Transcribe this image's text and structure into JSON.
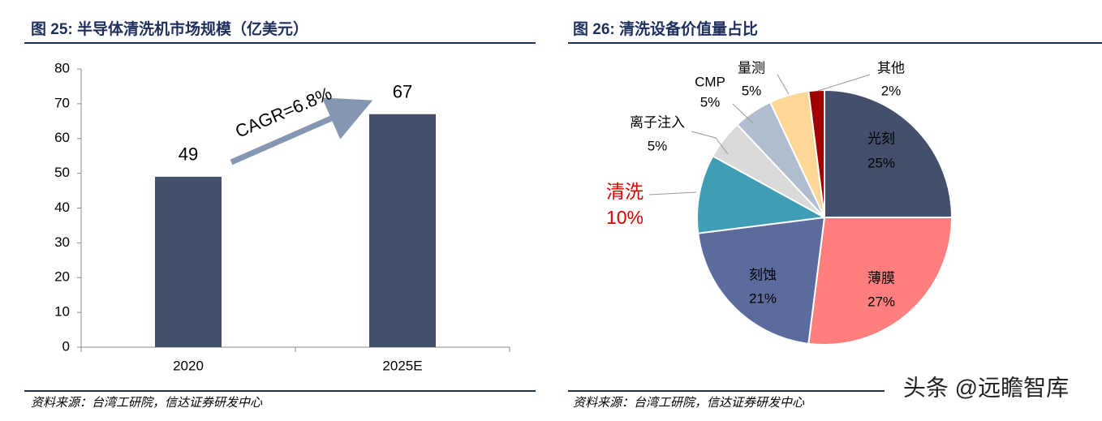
{
  "chart_data": [
    {
      "type": "bar",
      "title": "图 25:  半导体清洗机市场规模（亿美元）",
      "categories": [
        "2020",
        "2025E"
      ],
      "values": [
        49,
        67
      ],
      "color": "#444f6b",
      "ylim": [
        0,
        80
      ],
      "yticks": [
        0,
        10,
        20,
        30,
        40,
        50,
        60,
        70,
        80
      ],
      "annotation": "CAGR=6.8%",
      "source": "资料来源：台湾工研院，信达证券研发中心"
    },
    {
      "type": "pie",
      "title": "图 26:  清洗设备价值量占比",
      "categories": [
        "光刻",
        "薄膜",
        "刻蚀",
        "清洗",
        "离子注入",
        "CMP",
        "量测",
        "其他"
      ],
      "values": [
        25,
        27,
        21,
        10,
        5,
        5,
        5,
        2
      ],
      "value_labels": [
        "25%",
        "27%",
        "21%",
        "10%",
        "5%",
        "5%",
        "5%",
        "2%"
      ],
      "colors": [
        "#444f6b",
        "#ff7f7f",
        "#5b6b9e",
        "#3f9db5",
        "#d9d9d9",
        "#b0bccf",
        "#fdd795",
        "#a00000"
      ],
      "source": "资料来源：台湾工研院，信达证券研发中心"
    }
  ],
  "watermark": "头条 @远瞻智库"
}
